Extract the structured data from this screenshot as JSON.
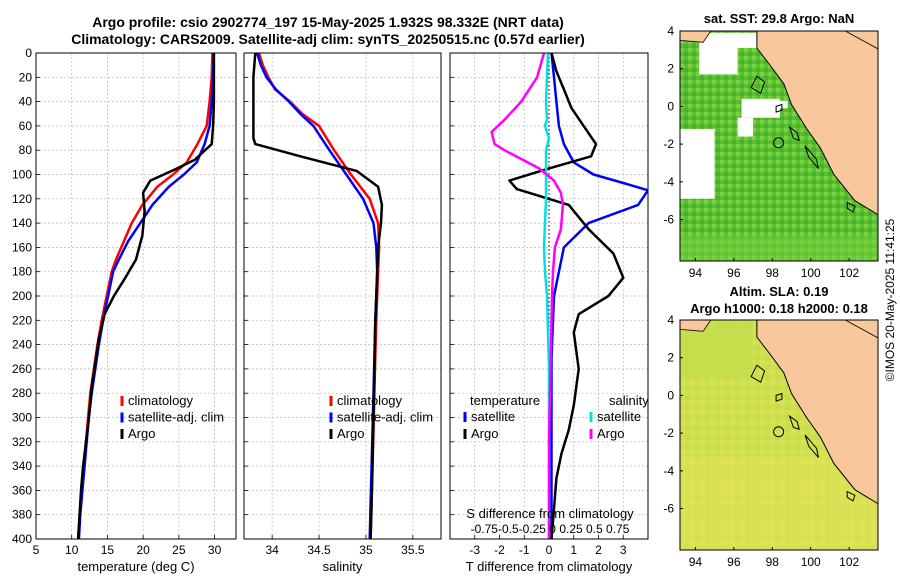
{
  "figure": {
    "title_line1": "Argo profile: csio 2902774_197 15-May-2025 1.932S 98.332E (NRT data)",
    "title_line2": "Climatology: CARS2009. Satellite-adj clim: synTS_20250515.nc (0.57d earlier)",
    "timestamp": "©IMOS 20-May-2025 11:41:25"
  },
  "colors": {
    "climatology": "#ff0000",
    "satellite_adj": "#0000ff",
    "argo": "#000000",
    "salinity_satellite": "#00e0e0",
    "salinity_argo": "#ff00ff",
    "land": "#f8c89c",
    "sst_fill": "#66cc33",
    "sla_fill": "#cce050"
  },
  "chart_data": [
    {
      "type": "line",
      "name": "temperature",
      "xlabel": "temperature (deg C)",
      "ylabel": "",
      "xlim": [
        5,
        33
      ],
      "ylim": [
        400,
        0
      ],
      "xticks": [
        5,
        10,
        15,
        20,
        25,
        30
      ],
      "yticks": [
        0,
        20,
        40,
        60,
        80,
        100,
        120,
        140,
        160,
        180,
        200,
        220,
        240,
        260,
        280,
        300,
        320,
        340,
        360,
        380,
        400
      ],
      "grid": true,
      "legend": [
        "climatology",
        "satellite-adj. clim",
        "Argo"
      ],
      "series": [
        {
          "name": "climatology",
          "color": "#ff0000",
          "x": [
            29.7,
            29.6,
            29.3,
            28.9,
            27.6,
            26.1,
            24.2,
            22.0,
            19.9,
            18.4,
            17.3,
            16.2,
            15.6,
            14.9,
            14.2,
            13.6,
            13.1,
            12.6,
            12.3,
            12.0,
            11.7,
            11.4,
            11.1,
            10.9
          ],
          "y": [
            0,
            20,
            40,
            60,
            75,
            90,
            100,
            110,
            125,
            140,
            155,
            170,
            180,
            200,
            220,
            240,
            260,
            280,
            300,
            320,
            340,
            360,
            380,
            400
          ]
        },
        {
          "name": "satellite-adj. clim",
          "color": "#0000ff",
          "x": [
            29.9,
            29.8,
            29.6,
            29.3,
            28.6,
            27.5,
            25.7,
            23.6,
            21.3,
            19.6,
            17.9,
            16.6,
            15.8,
            15.1,
            14.4,
            13.8,
            13.3,
            12.8,
            12.4,
            12.1,
            11.8,
            11.5,
            11.2,
            11.0
          ],
          "y": [
            0,
            20,
            40,
            60,
            75,
            90,
            100,
            110,
            125,
            140,
            155,
            170,
            180,
            200,
            220,
            240,
            260,
            280,
            300,
            320,
            340,
            360,
            380,
            400
          ]
        },
        {
          "name": "Argo",
          "color": "#000000",
          "x": [
            29.9,
            29.9,
            29.9,
            29.8,
            29.6,
            27.2,
            24.4,
            21.0,
            20.0,
            20.2,
            19.9,
            19.0,
            17.5,
            15.9,
            14.6,
            13.8,
            13.3,
            12.8,
            12.4,
            12.0,
            11.6,
            11.3,
            11.1,
            10.9
          ],
          "y": [
            0,
            20,
            40,
            60,
            75,
            88,
            96,
            105,
            115,
            130,
            150,
            170,
            185,
            200,
            215,
            235,
            255,
            275,
            300,
            320,
            340,
            360,
            380,
            400
          ]
        }
      ]
    },
    {
      "type": "line",
      "name": "salinity",
      "xlabel": "salinity",
      "ylabel": "",
      "xlim": [
        33.7,
        35.8
      ],
      "ylim": [
        400,
        0
      ],
      "xticks": [
        34,
        34.5,
        35,
        35.5
      ],
      "tick_labels": [
        "34",
        "34.5",
        "35",
        "35.5"
      ],
      "grid": true,
      "legend": [
        "climatology",
        "satellite-adj. clim",
        "Argo"
      ],
      "series": [
        {
          "name": "climatology",
          "color": "#ff0000",
          "x": [
            33.86,
            33.9,
            33.96,
            34.03,
            34.19,
            34.32,
            34.5,
            34.66,
            34.84,
            35.04,
            35.13,
            35.14,
            35.13,
            35.12,
            35.11,
            35.1,
            35.09,
            35.08,
            35.07,
            35.06,
            35.05
          ],
          "y": [
            0,
            10,
            20,
            30,
            40,
            50,
            60,
            80,
            100,
            120,
            140,
            160,
            180,
            200,
            220,
            250,
            280,
            310,
            340,
            370,
            400
          ]
        },
        {
          "name": "satellite-adj. clim",
          "color": "#0000ff",
          "x": [
            33.84,
            33.88,
            33.94,
            34.04,
            34.18,
            34.3,
            34.44,
            34.61,
            34.79,
            34.97,
            35.08,
            35.11,
            35.12,
            35.11,
            35.1,
            35.09,
            35.08,
            35.07,
            35.06,
            35.05,
            35.04
          ],
          "y": [
            0,
            10,
            20,
            30,
            40,
            50,
            60,
            80,
            100,
            120,
            140,
            160,
            180,
            200,
            220,
            250,
            280,
            310,
            340,
            370,
            400
          ]
        },
        {
          "name": "Argo",
          "color": "#000000",
          "x": [
            33.82,
            33.8,
            33.8,
            33.8,
            33.8,
            33.82,
            34.3,
            34.9,
            35.13,
            35.17,
            35.16,
            35.13,
            35.12,
            35.11,
            35.1,
            35.09,
            35.08,
            35.07,
            35.06,
            35.05
          ],
          "y": [
            0,
            20,
            40,
            60,
            70,
            75,
            85,
            97,
            110,
            125,
            140,
            160,
            180,
            200,
            220,
            260,
            300,
            340,
            370,
            400
          ]
        }
      ]
    },
    {
      "type": "line",
      "name": "difference",
      "xlabel": "T difference from climatology",
      "top_label": "S difference from climatology",
      "top_ticks": "-0.75-0.5-0.25  0  0.25 0.5 0.75",
      "ylim": [
        400,
        0
      ],
      "xlim": [
        -4,
        4
      ],
      "xticks": [
        -3,
        -2,
        -1,
        0,
        1,
        2,
        3
      ],
      "s_xlim": [
        -1,
        1
      ],
      "grid": true,
      "legend": {
        "temperature_header": "temperature",
        "salinity_header": "salinity",
        "t_satellite": "satellite",
        "t_argo": "Argo",
        "s_satellite": "satellite",
        "s_argo": "Argo"
      },
      "series": [
        {
          "name": "T satellite",
          "color": "#0000ff",
          "axis": "T",
          "x": [
            0.1,
            0.2,
            0.3,
            0.4,
            0.6,
            1.0,
            1.8,
            3.0,
            4.0,
            3.6,
            1.6,
            0.6,
            0.4,
            0.2,
            0.1,
            0.1,
            0.1,
            0.1
          ],
          "y": [
            0,
            20,
            40,
            60,
            75,
            90,
            100,
            107,
            113,
            125,
            140,
            160,
            180,
            200,
            250,
            300,
            350,
            400
          ]
        },
        {
          "name": "T Argo",
          "color": "#000000",
          "axis": "T",
          "x": [
            0.1,
            0.3,
            0.6,
            0.9,
            1.4,
            1.9,
            1.7,
            0.0,
            -1.6,
            -1.3,
            0.8,
            1.6,
            2.6,
            3.0,
            2.4,
            1.2,
            1.0,
            1.2,
            1.0,
            0.8,
            0.5,
            0.3,
            0.2,
            0.1
          ],
          "y": [
            0,
            15,
            30,
            45,
            60,
            75,
            85,
            95,
            105,
            112,
            125,
            145,
            165,
            185,
            200,
            215,
            230,
            260,
            290,
            310,
            330,
            350,
            375,
            400
          ]
        },
        {
          "name": "S satellite",
          "color": "#00e0e0",
          "axis": "S",
          "x": [
            -0.01,
            -0.02,
            -0.03,
            -0.02,
            -0.04,
            0.0,
            -0.03,
            -0.03,
            -0.03,
            -0.04,
            -0.05,
            -0.04,
            -0.02,
            -0.01,
            0.0,
            0.0,
            0.0,
            0.0,
            0.0
          ],
          "y": [
            0,
            20,
            40,
            55,
            60,
            70,
            80,
            100,
            120,
            140,
            160,
            180,
            200,
            230,
            260,
            300,
            340,
            370,
            400
          ]
        },
        {
          "name": "S Argo",
          "color": "#ff00ff",
          "axis": "S",
          "x": [
            -0.05,
            -0.12,
            -0.28,
            -0.45,
            -0.58,
            -0.55,
            -0.45,
            -0.1,
            0.05,
            0.12,
            0.14,
            0.12,
            0.06,
            0.04,
            0.03,
            0.02,
            0.01,
            0.0,
            0.0,
            0.0
          ],
          "y": [
            0,
            20,
            40,
            55,
            65,
            75,
            80,
            95,
            105,
            115,
            125,
            145,
            160,
            180,
            200,
            240,
            280,
            320,
            360,
            400
          ]
        }
      ]
    },
    {
      "type": "heatmap",
      "name": "sst_map",
      "title": "sat. SST: 29.8 Argo: NaN",
      "xlim": [
        93.2,
        103.5
      ],
      "ylim": [
        -8.2,
        4
      ],
      "xticks": [
        94,
        96,
        98,
        100,
        102
      ],
      "yticks": [
        4,
        2,
        0,
        -2,
        -4,
        -6
      ],
      "argo_position": [
        98.33,
        -1.93
      ]
    },
    {
      "type": "heatmap",
      "name": "sla_map",
      "title_line1": "Altim. SLA: 0.19",
      "title_line2": "Argo h1000: 0.18 h2000: 0.18",
      "xlim": [
        93.2,
        103.5
      ],
      "ylim": [
        -8.2,
        4
      ],
      "xticks": [
        94,
        96,
        98,
        100,
        102
      ],
      "yticks": [
        4,
        2,
        0,
        -2,
        -4,
        -6
      ],
      "argo_position": [
        98.33,
        -1.93
      ]
    }
  ]
}
